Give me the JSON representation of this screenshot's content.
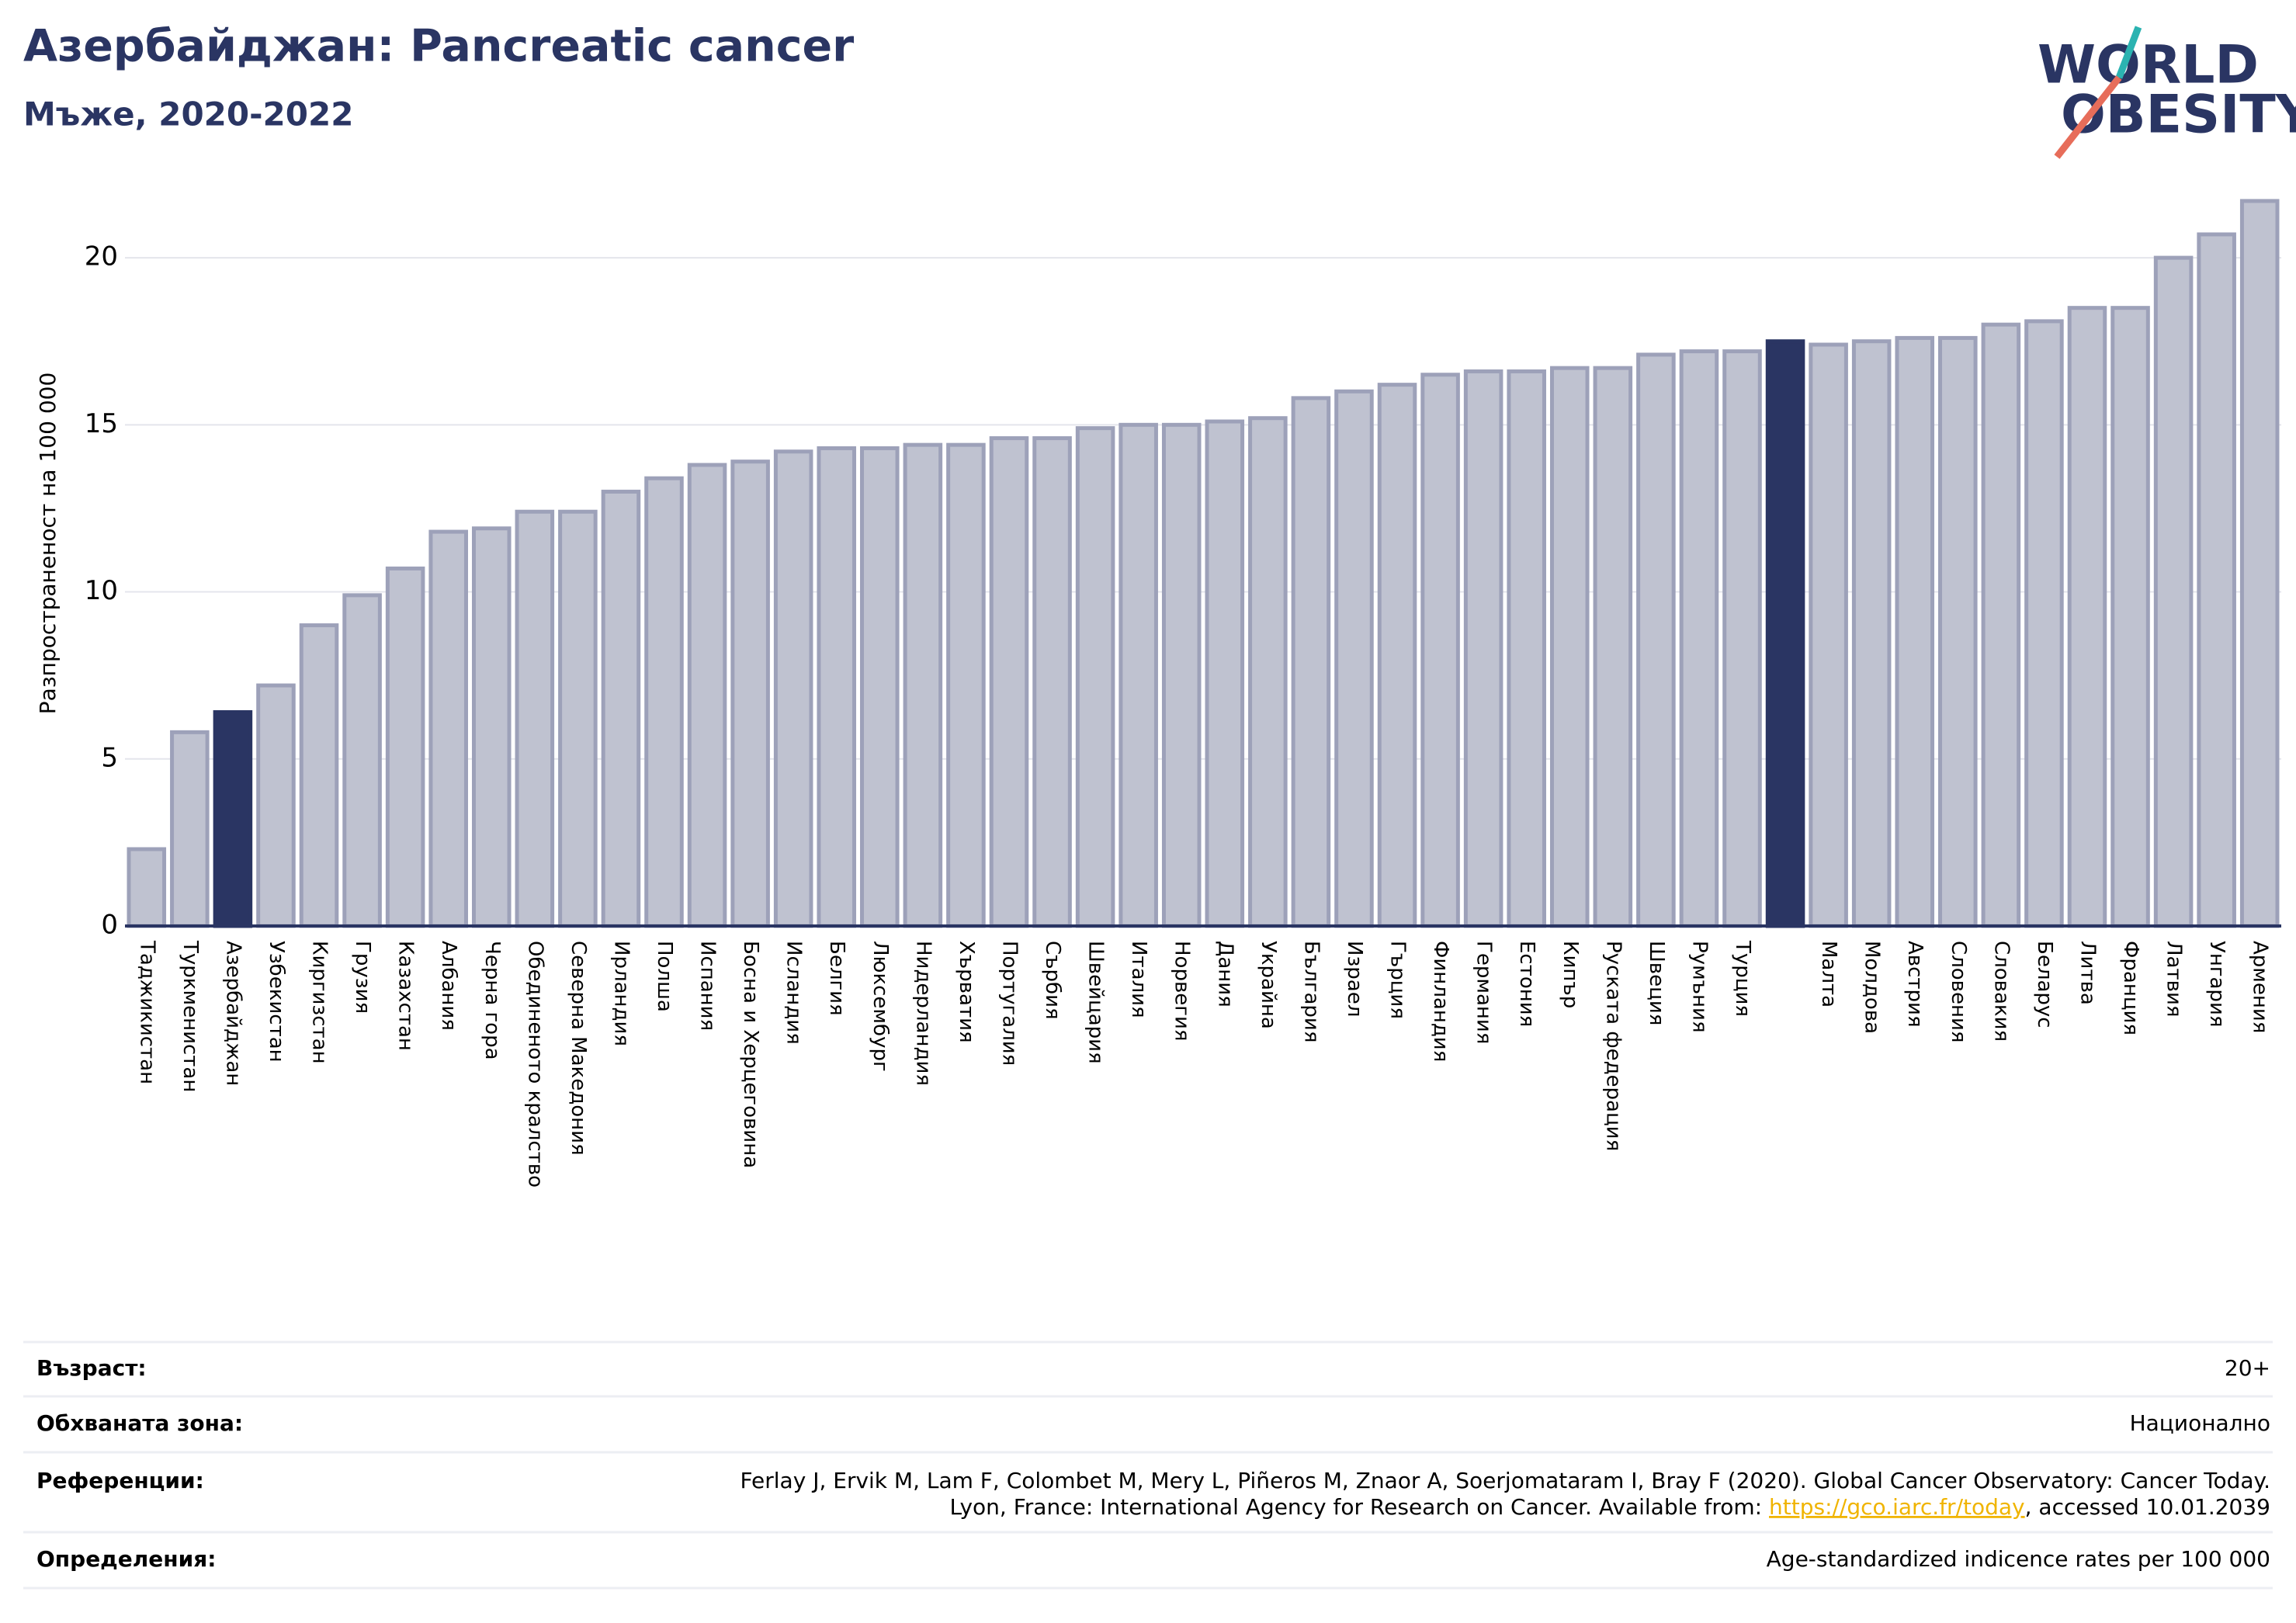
{
  "chart_data": {
    "type": "bar",
    "title": "Азербайджан: Pancreatic cancer",
    "subtitle": "Мъже, 2020-2022",
    "y_label": "Разпространеност  на 100 000",
    "logo": [
      "WORLD",
      "OBESITY"
    ],
    "categories": [
      "Таджикистан",
      "Туркменистан",
      "Азербайджан",
      "Узбекистан",
      "Киргизстан",
      "Грузия",
      "Казахстан",
      "Албания",
      "Черна гора",
      "Обединеното кралство",
      "Северна Македония",
      "Ирландия",
      "Полша",
      "Испания",
      "Босна и Херцеговина",
      "Исландия",
      "Белгия",
      "Люксембург",
      "Нидерландия",
      "Хърватия",
      "Португалия",
      "Сърбия",
      "Швейцария",
      "Италия",
      "Норвегия",
      "Дания",
      "Украйна",
      "България",
      "Израел",
      "Гърция",
      "Финландия",
      "Германия",
      "Естония",
      "Кипър",
      "Руската федерация",
      "Швеция",
      "Румъния",
      "Турция",
      null,
      "Малта",
      "Молдова",
      "Австрия",
      "Словения",
      "Словакия",
      "Беларус",
      "Литва",
      "Франция",
      "Латвия",
      "Унгария",
      "Армения"
    ],
    "values": [
      2.3,
      5.8,
      6.4,
      7.2,
      9.0,
      9.9,
      10.7,
      11.8,
      11.9,
      12.4,
      12.4,
      13.0,
      13.4,
      13.8,
      13.9,
      14.2,
      14.3,
      14.3,
      14.4,
      14.4,
      14.6,
      14.6,
      14.9,
      15.0,
      15.0,
      15.1,
      15.2,
      15.8,
      16.0,
      16.2,
      16.5,
      16.6,
      16.6,
      16.7,
      16.7,
      17.1,
      17.2,
      17.2,
      17.5,
      17.4,
      17.5,
      17.6,
      17.6,
      18.0,
      18.1,
      18.5,
      18.5,
      20.0,
      20.7,
      21.7
    ],
    "colors": [
      "#bfc2d0",
      "#bfc2d0",
      "#2a3563",
      "#bfc2d0",
      "#bfc2d0",
      "#bfc2d0",
      "#bfc2d0",
      "#bfc2d0",
      "#bfc2d0",
      "#bfc2d0",
      "#bfc2d0",
      "#bfc2d0",
      "#bfc2d0",
      "#bfc2d0",
      "#bfc2d0",
      "#bfc2d0",
      "#bfc2d0",
      "#bfc2d0",
      "#bfc2d0",
      "#bfc2d0",
      "#bfc2d0",
      "#bfc2d0",
      "#bfc2d0",
      "#bfc2d0",
      "#bfc2d0",
      "#bfc2d0",
      "#bfc2d0",
      "#bfc2d0",
      "#bfc2d0",
      "#bfc2d0",
      "#bfc2d0",
      "#bfc2d0",
      "#bfc2d0",
      "#bfc2d0",
      "#bfc2d0",
      "#bfc2d0",
      "#bfc2d0",
      "#bfc2d0",
      "#2a3563",
      "#bfc2d0",
      "#bfc2d0",
      "#bfc2d0",
      "#bfc2d0",
      "#bfc2d0",
      "#bfc2d0",
      "#bfc2d0",
      "#bfc2d0",
      "#bfc2d0",
      "#bfc2d0",
      "#bfc2d0"
    ],
    "ylim": [
      0,
      22
    ],
    "yticks": [
      0,
      5,
      10,
      15,
      20
    ],
    "grid": true
  },
  "footer": [
    {
      "label": "Възраст:",
      "value": [
        "20+"
      ]
    },
    {
      "label": "Обхваната зона:",
      "value": [
        "Национално"
      ]
    },
    {
      "label": "Референции:",
      "value": [
        "Ferlay J, Ervik M, Lam F, Colombet M, Mery L, Piñeros M, Znaor A, Soerjomataram I, Bray F (2020). Global Cancer Observatory: Cancer Today.",
        "Lyon, France: International Agency for Research on Cancer. Available from: ",
        "https://gco.iarc.fr/today",
        ", accessed 10.01.2039"
      ]
    },
    {
      "label": "Определения:",
      "value": [
        "Age-standardized indicence rates per 100 000"
      ]
    }
  ]
}
